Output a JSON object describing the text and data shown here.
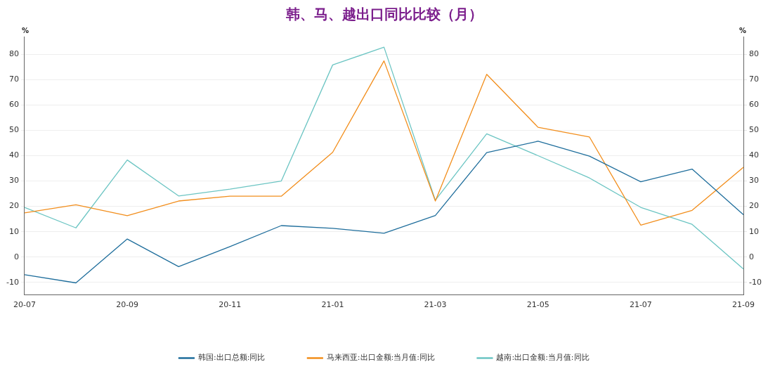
{
  "chart_data": {
    "type": "line",
    "title": "韩、马、越出口同比比较（月）",
    "ylabel": "%",
    "y2label": "%",
    "categories": [
      "20-07",
      null,
      "20-09",
      null,
      "20-11",
      null,
      "21-01",
      null,
      "21-03",
      null,
      "21-05",
      null,
      "21-07",
      null,
      "21-09"
    ],
    "series": [
      {
        "name": "韩国:出口总额:同比",
        "color": "#1f6e9c",
        "values": [
          -7,
          -10.2,
          7.1,
          -3.8,
          4.1,
          12.4,
          11.3,
          9.4,
          16.4,
          41.2,
          45.7,
          39.8,
          29.7,
          34.7,
          16.7
        ]
      },
      {
        "name": "马来西亚:出口金额:当月值:同比",
        "color": "#f28e1c",
        "values": [
          17.4,
          20.6,
          16.3,
          22.1,
          24.0,
          24.0,
          41.3,
          77.4,
          22.1,
          72.1,
          51.2,
          47.4,
          12.6,
          18.4,
          35.4
        ]
      },
      {
        "name": "越南:出口金额:当月值:同比",
        "color": "#6cc5c3",
        "values": [
          19.6,
          11.5,
          38.3,
          24.1,
          26.8,
          30.0,
          75.8,
          82.8,
          22.4,
          48.6,
          40.0,
          31.2,
          19.6,
          12.9,
          -4.7
        ]
      }
    ],
    "ylim": [
      -15,
      87
    ],
    "yticks": [
      -10,
      0,
      10,
      20,
      30,
      40,
      50,
      60,
      70,
      80
    ],
    "y2lim": [
      -15,
      87
    ],
    "y2ticks": [
      -10,
      0,
      10,
      20,
      30,
      40,
      50,
      60,
      70,
      80
    ],
    "grid": "y",
    "legend": "bottom",
    "marker": "none",
    "line_style": "solid"
  }
}
